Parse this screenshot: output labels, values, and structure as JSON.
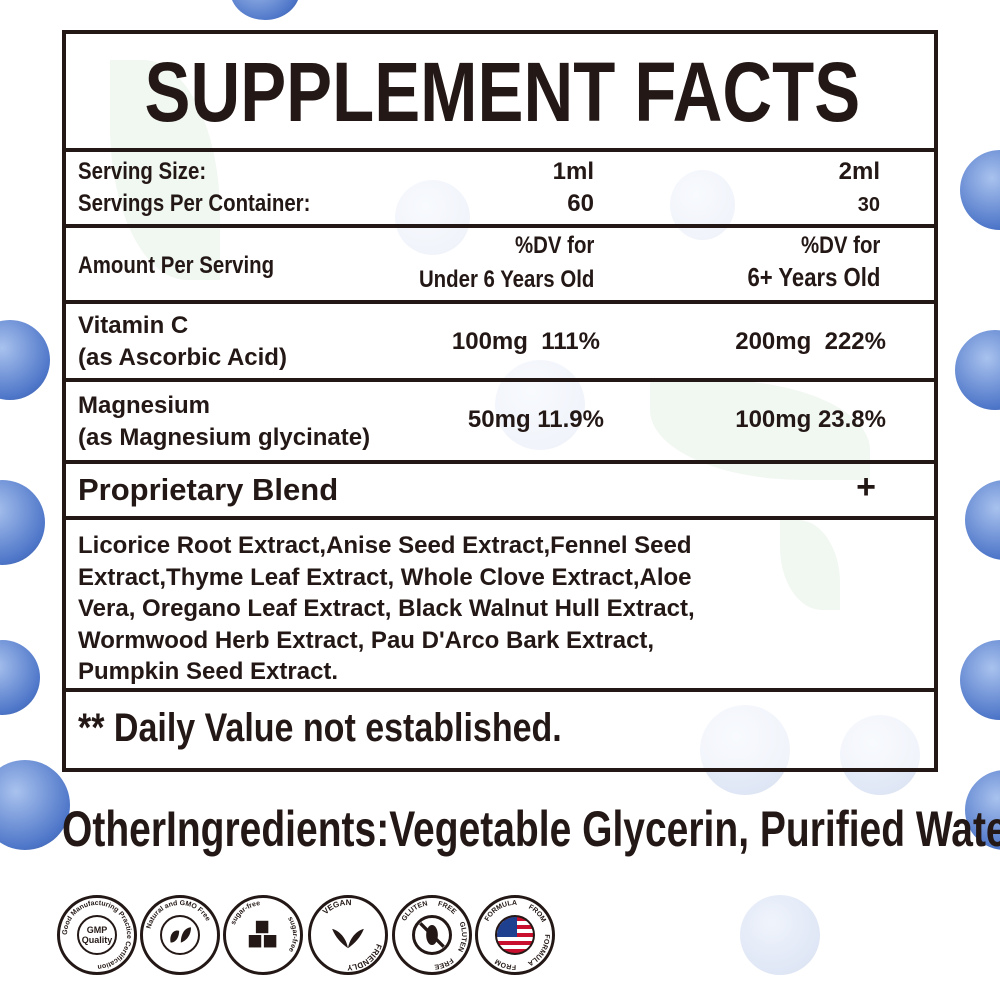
{
  "title": "SUPPLEMENT FACTS",
  "serving": {
    "size_label": "Serving Size:",
    "per_container_label": "Servings Per Container:",
    "col1": {
      "size": "1ml",
      "per_container": "60"
    },
    "col2": {
      "size": "2ml",
      "per_container": "30"
    }
  },
  "amount_header": {
    "label": "Amount Per Serving",
    "col1_line1": "%DV for",
    "col1_line2": "Under 6 Years Old",
    "col2_line1": "%DV for",
    "col2_line2": "6+ Years Old"
  },
  "nutrients": [
    {
      "name": "Vitamin C",
      "source": "(as Ascorbic Acid)",
      "col1": "100mg  111%",
      "col2": "200mg  222%"
    },
    {
      "name": "Magnesium",
      "source": "(as Magnesium glycinate)",
      "col1": "50mg 11.9%",
      "col2": "100mg 23.8%"
    }
  ],
  "blend": {
    "label": "Proprietary Blend",
    "marker": "+"
  },
  "blend_ingredients": [
    "Licorice Root Extract,Anise Seed Extract,Fennel Seed",
    "Extract,Thyme Leaf Extract, Whole Clove Extract,Aloe",
    "Vera, Oregano Leaf Extract, Black Walnut Hull Extract,",
    "Wormwood Herb Extract, Pau D'Arco Bark Extract,",
    "Pumpkin Seed Extract."
  ],
  "footnote": "** Daily Value not established.",
  "other_ingredients": "OtherIngredients:Vegetable Glycerin, Purified Water.",
  "badges": [
    {
      "icon": "gmp-icon",
      "ring": "Good Manufacturing Practice Certification",
      "center": "GMP Quality"
    },
    {
      "icon": "leaf-icon",
      "ring": "Natural and GMO Free",
      "center": ""
    },
    {
      "icon": "sugar-cubes-icon",
      "ring": "sugar-free sugar-free",
      "center": ""
    },
    {
      "icon": "vegan-leaf-icon",
      "ring": "VEGAN FRIENDLY",
      "center": ""
    },
    {
      "icon": "gluten-free-icon",
      "ring": "GLUTEN FREE GLUTEN FREE",
      "center": ""
    },
    {
      "icon": "us-flag-icon",
      "ring": "FORMULA FROM FORMULA FROM",
      "center": ""
    }
  ],
  "colors": {
    "text": "#231815",
    "berry": "#4f77c9",
    "leaf": "#6aa56a"
  }
}
